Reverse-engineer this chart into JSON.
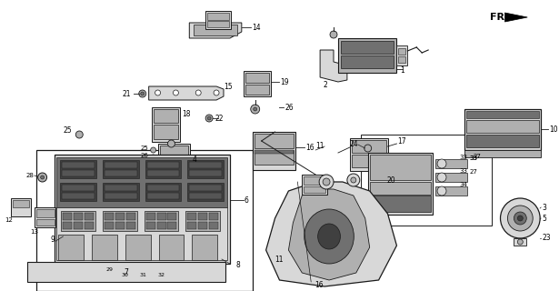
{
  "bg_color": "#ffffff",
  "fig_width": 6.15,
  "fig_height": 3.2,
  "dpi": 100,
  "lc": "#1a1a1a",
  "fc_light": "#d8d8d8",
  "fc_mid": "#b0b0b0",
  "fc_dark": "#707070",
  "fc_vdark": "#404040"
}
